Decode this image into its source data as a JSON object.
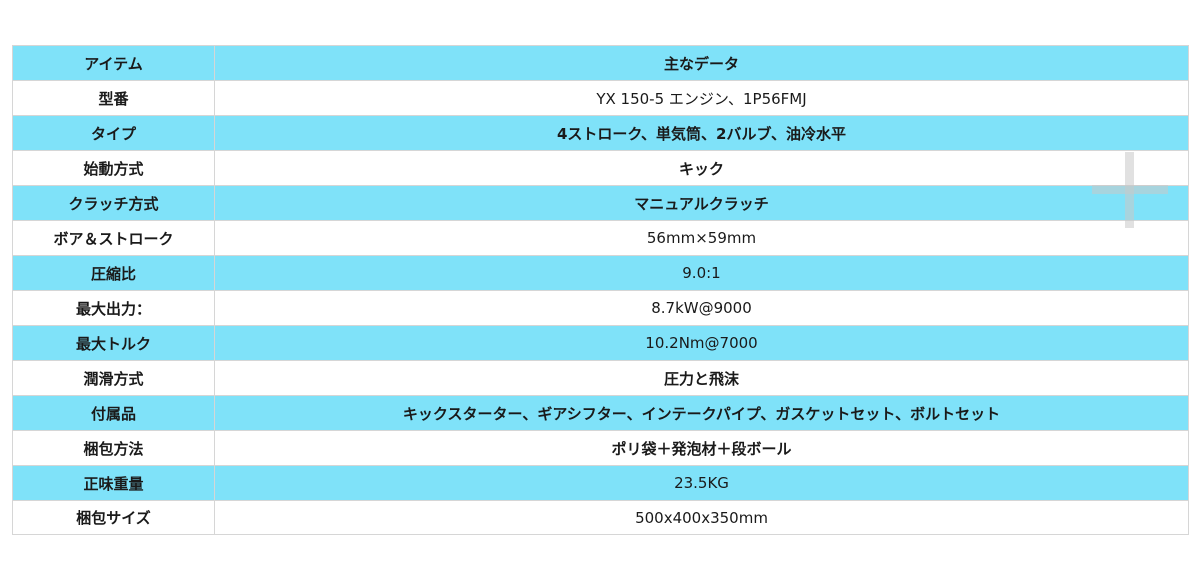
{
  "colors": {
    "header_row": "#7fe2f9",
    "alt_row": "#ffffff",
    "grid_line": "#d6d6d6"
  },
  "table": {
    "header": {
      "label": "アイテム",
      "value": "主なデータ"
    },
    "rows": [
      {
        "label": "型番",
        "value": "YX 150-5 エンジン、1P56FMJ",
        "bold": false
      },
      {
        "label": "タイプ",
        "value": "4ストローク、単気筒、2バルブ、油冷水平",
        "bold": true
      },
      {
        "label": "始動方式",
        "value": "キック",
        "bold": true
      },
      {
        "label": "クラッチ方式",
        "value": "マニュアルクラッチ",
        "bold": true
      },
      {
        "label": "ボア＆ストローク",
        "value": "56mm×59mm",
        "bold": false
      },
      {
        "label": "圧縮比",
        "value": "9.0:1",
        "bold": false
      },
      {
        "label": "最大出力：",
        "value": "8.7kW@9000",
        "bold": false
      },
      {
        "label": "最大トルク",
        "value": "10.2Nm@7000",
        "bold": false
      },
      {
        "label": "潤滑方式",
        "value": "圧力と飛沫",
        "bold": true
      },
      {
        "label": "付属品",
        "value": "キックスターター、ギアシフター、インテークパイプ、ガスケットセット、ボルトセット",
        "bold": true
      },
      {
        "label": "梱包方法",
        "value": "ポリ袋＋発泡材＋段ボール",
        "bold": true
      },
      {
        "label": "正味重量",
        "value": "23.5KG",
        "bold": false
      },
      {
        "label": "梱包サイズ",
        "value": "500x400x350mm",
        "bold": false
      }
    ]
  },
  "overlay_icon": "plus-icon"
}
